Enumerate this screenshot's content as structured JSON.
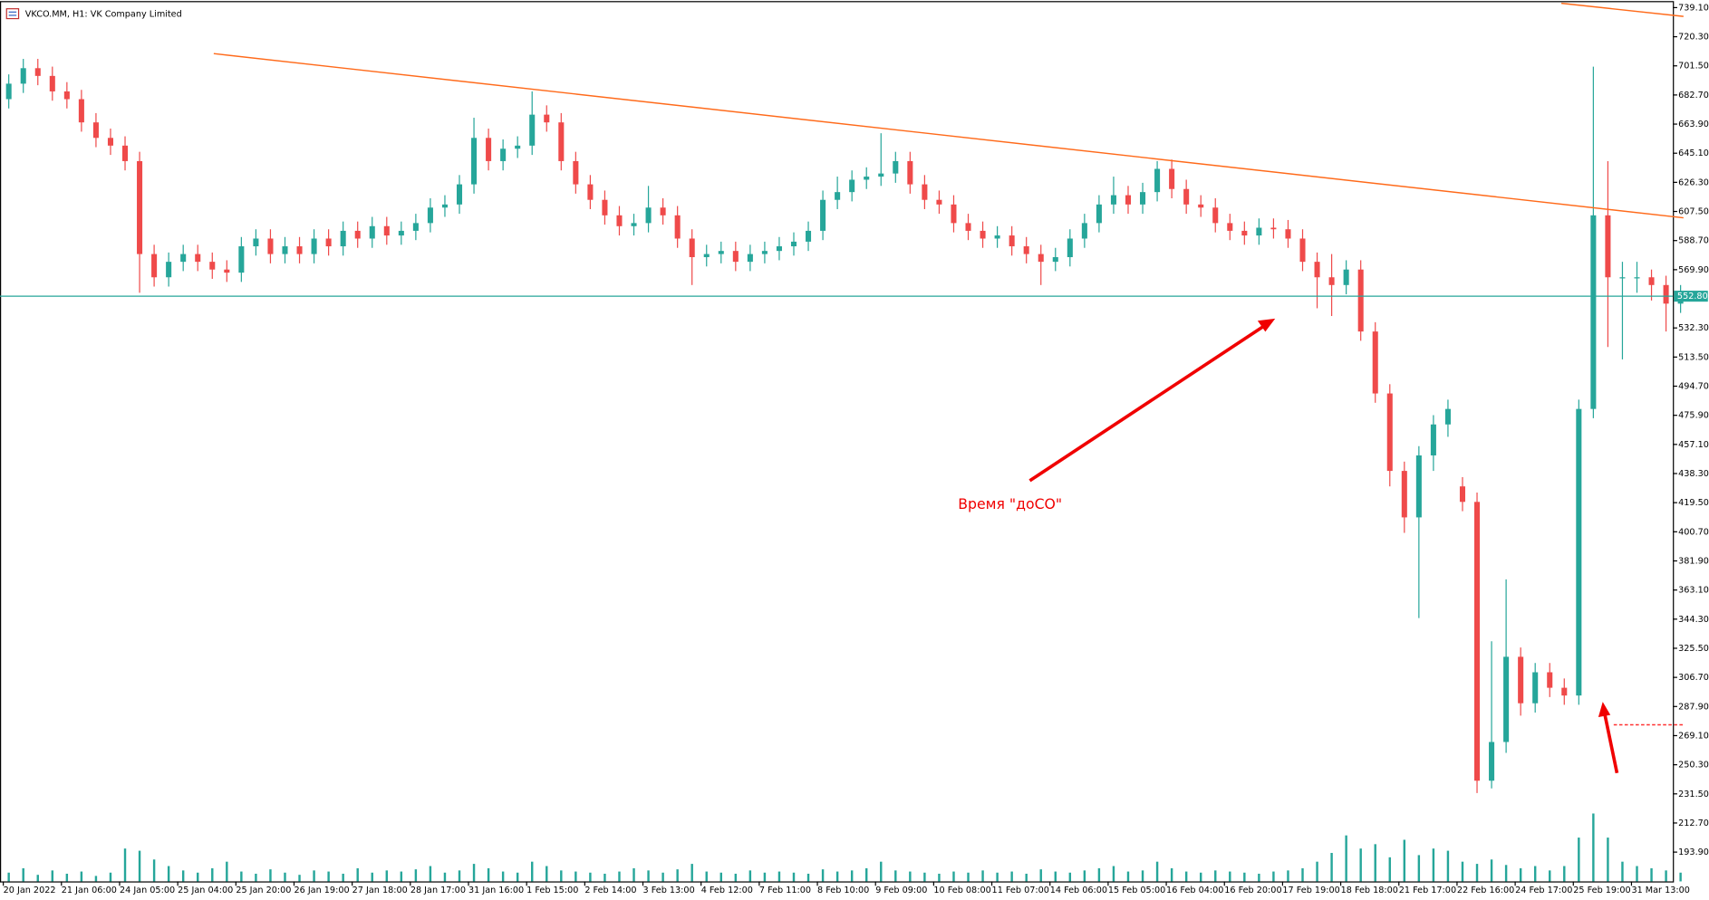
{
  "chart_data": {
    "type": "candlestick",
    "title": "VKCO.MM, H1:  VK Company Limited",
    "annotation": "Время \"доСО\"",
    "categories": [
      "20 Jan 2022",
      null,
      null,
      null,
      "21 Jan 06:00",
      null,
      null,
      null,
      "24 Jan 05:00",
      null,
      null,
      null,
      "25 Jan 04:00",
      null,
      null,
      null,
      "25 Jan 20:00",
      null,
      null,
      null,
      "26 Jan 19:00",
      null,
      null,
      null,
      "27 Jan 18:00",
      null,
      null,
      null,
      "28 Jan 17:00",
      null,
      null,
      null,
      "31 Jan 16:00",
      null,
      null,
      null,
      "1 Feb 15:00",
      null,
      null,
      null,
      "2 Feb 14:00",
      null,
      null,
      null,
      "3 Feb 13:00",
      null,
      null,
      null,
      "4 Feb 12:00",
      null,
      null,
      null,
      "7 Feb 11:00",
      null,
      null,
      null,
      "8 Feb 10:00",
      null,
      null,
      null,
      "9 Feb 09:00",
      null,
      null,
      null,
      "10 Feb 08:00",
      null,
      null,
      null,
      "11 Feb 07:00",
      null,
      null,
      null,
      "14 Feb 06:00",
      null,
      null,
      null,
      "15 Feb 05:00",
      null,
      null,
      null,
      "16 Feb 04:00",
      null,
      null,
      null,
      "16 Feb 20:00",
      null,
      null,
      null,
      "17 Feb 19:00",
      null,
      null,
      null,
      "18 Feb 18:00",
      null,
      null,
      null,
      "21 Feb 17:00",
      null,
      null,
      null,
      "22 Feb 16:00",
      null,
      null,
      null,
      "24 Feb 17:00",
      null,
      null,
      null,
      "25 Feb 19:00",
      null,
      null,
      null,
      "31 Mar 13:00",
      null,
      null,
      null
    ],
    "open": [
      680,
      690,
      700,
      695,
      685,
      680,
      665,
      655,
      650,
      640,
      580,
      565,
      575,
      580,
      575,
      570,
      568,
      585,
      590,
      580,
      585,
      580,
      590,
      585,
      595,
      590,
      598,
      592,
      595,
      600,
      610,
      612,
      625,
      655,
      640,
      648,
      650,
      670,
      665,
      640,
      625,
      615,
      605,
      598,
      600,
      610,
      605,
      590,
      578,
      580,
      582,
      575,
      580,
      582,
      585,
      588,
      595,
      615,
      620,
      628,
      630,
      632,
      640,
      625,
      615,
      612,
      600,
      595,
      590,
      592,
      585,
      580,
      575,
      578,
      590,
      600,
      612,
      618,
      612,
      620,
      635,
      622,
      612,
      610,
      600,
      595,
      592,
      597,
      596,
      590,
      575,
      565,
      560,
      570,
      530,
      490,
      440,
      410,
      450,
      470,
      430,
      420,
      240,
      265,
      320,
      290,
      310,
      300,
      295,
      480,
      605,
      565,
      565,
      565,
      560,
      548
    ],
    "high": [
      696,
      706,
      706,
      701,
      691,
      686,
      671,
      661,
      656,
      646,
      586,
      581,
      586,
      586,
      581,
      576,
      591,
      596,
      596,
      591,
      591,
      596,
      596,
      601,
      601,
      604,
      604,
      601,
      606,
      616,
      618,
      631,
      668,
      661,
      654,
      656,
      685,
      676,
      671,
      646,
      631,
      621,
      611,
      606,
      624,
      616,
      611,
      596,
      586,
      588,
      588,
      586,
      588,
      591,
      594,
      601,
      621,
      630,
      634,
      636,
      658,
      646,
      646,
      631,
      621,
      618,
      606,
      601,
      598,
      598,
      591,
      586,
      584,
      596,
      606,
      618,
      630,
      624,
      626,
      640,
      641,
      628,
      618,
      616,
      606,
      601,
      603,
      603,
      602,
      596,
      581,
      580,
      576,
      576,
      536,
      496,
      446,
      456,
      476,
      486,
      436,
      426,
      330,
      370,
      326,
      316,
      316,
      306,
      486,
      701,
      640,
      575,
      575,
      570,
      566,
      560
    ],
    "low": [
      674,
      684,
      689,
      679,
      674,
      659,
      649,
      644,
      634,
      555,
      559,
      559,
      569,
      569,
      564,
      562,
      562,
      579,
      574,
      574,
      574,
      574,
      579,
      579,
      584,
      584,
      586,
      586,
      589,
      594,
      604,
      606,
      619,
      634,
      634,
      642,
      644,
      659,
      634,
      619,
      609,
      599,
      592,
      592,
      594,
      599,
      584,
      560,
      572,
      574,
      569,
      569,
      574,
      576,
      579,
      582,
      589,
      609,
      614,
      622,
      624,
      626,
      619,
      609,
      606,
      594,
      589,
      584,
      584,
      579,
      574,
      560,
      569,
      572,
      584,
      594,
      606,
      606,
      606,
      614,
      616,
      606,
      604,
      594,
      589,
      586,
      586,
      590,
      584,
      569,
      545,
      540,
      554,
      524,
      484,
      430,
      400,
      345,
      440,
      462,
      414,
      232,
      235,
      258,
      282,
      284,
      294,
      289,
      289,
      474,
      520,
      512,
      555,
      550,
      530,
      542
    ],
    "close": [
      690,
      700,
      695,
      685,
      680,
      665,
      655,
      650,
      640,
      580,
      565,
      575,
      580,
      575,
      570,
      568,
      585,
      590,
      580,
      585,
      580,
      590,
      585,
      595,
      590,
      598,
      592,
      595,
      600,
      610,
      612,
      625,
      655,
      640,
      648,
      650,
      670,
      665,
      640,
      625,
      615,
      605,
      598,
      600,
      610,
      605,
      590,
      578,
      580,
      582,
      575,
      580,
      582,
      585,
      588,
      595,
      615,
      620,
      628,
      630,
      632,
      640,
      625,
      615,
      612,
      600,
      595,
      590,
      592,
      585,
      580,
      575,
      578,
      590,
      600,
      612,
      618,
      612,
      620,
      635,
      622,
      612,
      610,
      600,
      595,
      592,
      597,
      596,
      590,
      575,
      565,
      560,
      570,
      530,
      490,
      440,
      410,
      450,
      470,
      480,
      420,
      240,
      265,
      320,
      290,
      310,
      300,
      295,
      480,
      605,
      565,
      565,
      565,
      560,
      548,
      552.8
    ],
    "volume": [
      8,
      12,
      6,
      10,
      7,
      9,
      5,
      8,
      30,
      28,
      20,
      14,
      10,
      8,
      12,
      18,
      9,
      7,
      11,
      8,
      6,
      10,
      9,
      7,
      12,
      8,
      10,
      9,
      11,
      14,
      8,
      10,
      16,
      12,
      9,
      8,
      18,
      14,
      10,
      9,
      8,
      7,
      9,
      12,
      10,
      8,
      11,
      16,
      9,
      8,
      7,
      10,
      8,
      9,
      8,
      7,
      11,
      9,
      10,
      12,
      18,
      10,
      9,
      8,
      7,
      9,
      8,
      10,
      8,
      9,
      7,
      11,
      9,
      8,
      10,
      12,
      14,
      9,
      10,
      18,
      12,
      9,
      8,
      10,
      9,
      8,
      7,
      9,
      10,
      12,
      18,
      26,
      42,
      30,
      34,
      22,
      38,
      24,
      30,
      28,
      18,
      16,
      20,
      15,
      12,
      14,
      10,
      14,
      40,
      62,
      40,
      18,
      14,
      12,
      10,
      8
    ],
    "volume_lim": [
      0,
      100
    ],
    "bull_color": "#26a69a",
    "bear_color": "#ef4a4a",
    "ylim": [
      175,
      742.6
    ],
    "yticks": [
      {
        "value": 739.1,
        "label": "739.10"
      },
      {
        "value": 720.3,
        "label": "720.30"
      },
      {
        "value": 701.5,
        "label": "701.50"
      },
      {
        "value": 682.7,
        "label": "682.70"
      },
      {
        "value": 663.9,
        "label": "663.90"
      },
      {
        "value": 645.1,
        "label": "645.10"
      },
      {
        "value": 626.3,
        "label": "626.30"
      },
      {
        "value": 607.5,
        "label": "607.50"
      },
      {
        "value": 588.7,
        "label": "588.70"
      },
      {
        "value": 569.9,
        "label": "569.90"
      },
      {
        "value": 532.3,
        "label": "532.30"
      },
      {
        "value": 513.5,
        "label": "513.50"
      },
      {
        "value": 494.7,
        "label": "494.70"
      },
      {
        "value": 475.9,
        "label": "475.90"
      },
      {
        "value": 457.1,
        "label": "457.10"
      },
      {
        "value": 438.3,
        "label": "438.30"
      },
      {
        "value": 419.5,
        "label": "419.50"
      },
      {
        "value": 400.7,
        "label": "400.70"
      },
      {
        "value": 381.9,
        "label": "381.90"
      },
      {
        "value": 363.1,
        "label": "363.10"
      },
      {
        "value": 344.3,
        "label": "344.30"
      },
      {
        "value": 325.5,
        "label": "325.50"
      },
      {
        "value": 306.7,
        "label": "306.70"
      },
      {
        "value": 287.9,
        "label": "287.90"
      },
      {
        "value": 269.1,
        "label": "269.10"
      },
      {
        "value": 250.3,
        "label": "250.30"
      },
      {
        "value": 231.5,
        "label": "231.50"
      },
      {
        "value": 212.7,
        "label": "212.70"
      },
      {
        "value": 193.9,
        "label": "193.90"
      }
    ],
    "last_price": {
      "value": 552.8,
      "label": "552.80"
    },
    "trendlines": [
      {
        "color": "#ff6a1a",
        "x": [
          14.1,
          115.2
        ],
        "y": [
          709.4,
          603.4
        ]
      },
      {
        "color": "#ff6a1a",
        "x": [
          106.8,
          115.2
        ],
        "y": [
          741.9,
          733.4
        ]
      }
    ],
    "level_line": {
      "color": "#ff3030",
      "x": [
        110.4,
        115.2
      ],
      "y": [
        276.1,
        276.1
      ]
    }
  }
}
